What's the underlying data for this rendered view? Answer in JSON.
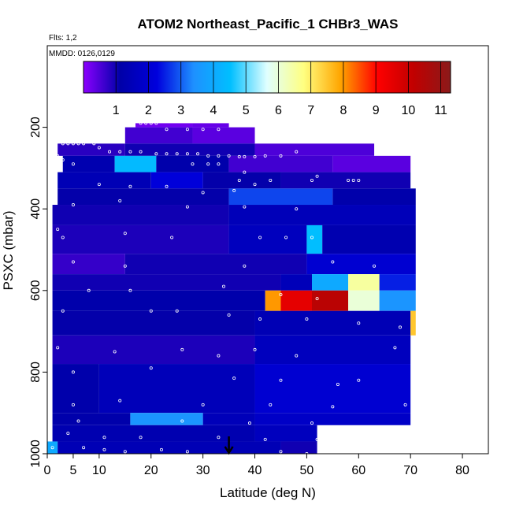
{
  "chart_data": {
    "type": "heatmap",
    "title": "ATOM2 Northeast_Pacific_1 CHBr3_WAS",
    "flights_label": "Flts: 1,2",
    "dates_label": "MMDD: 0126,0129",
    "xlabel": "Latitude (deg N)",
    "ylabel": "PSXC (mbar)",
    "xlim": [
      0,
      85
    ],
    "ylim": [
      1000,
      0
    ],
    "x_ticks": [
      0,
      5,
      10,
      20,
      30,
      40,
      50,
      60,
      70,
      80
    ],
    "y_ticks": [
      200,
      400,
      600,
      800,
      1000
    ],
    "colorbar": {
      "ticks": [
        1,
        2,
        3,
        4,
        5,
        6,
        7,
        8,
        9,
        10,
        11
      ],
      "range": [
        0,
        11.3
      ],
      "stops": [
        "#8b00ff",
        "#0000a8",
        "#0000dd",
        "#1e90ff",
        "#00bfff",
        "#e0ffff",
        "#ffff80",
        "#ffa500",
        "#ff0000",
        "#c00000",
        "#8b1a1a"
      ]
    },
    "marker": {
      "latitude": 35,
      "label": "arrow"
    },
    "cells": [
      {
        "lat0": 17,
        "lat1": 28,
        "p0": 200,
        "p1": 190,
        "value": 0.2
      },
      {
        "lat0": 28,
        "lat1": 35,
        "p0": 200,
        "p1": 190,
        "value": 0.3
      },
      {
        "lat0": 15,
        "lat1": 28,
        "p0": 240,
        "p1": 200,
        "value": 0.6
      },
      {
        "lat0": 28,
        "lat1": 40,
        "p0": 240,
        "p1": 200,
        "value": 0.4
      },
      {
        "lat0": 2,
        "lat1": 15,
        "p0": 270,
        "p1": 240,
        "value": 0.8
      },
      {
        "lat0": 15,
        "lat1": 40,
        "p0": 270,
        "p1": 240,
        "value": 1.0
      },
      {
        "lat0": 40,
        "lat1": 63,
        "p0": 270,
        "p1": 240,
        "value": 0.5
      },
      {
        "lat0": 3,
        "lat1": 13,
        "p0": 310,
        "p1": 270,
        "value": 1.3
      },
      {
        "lat0": 13,
        "lat1": 21,
        "p0": 310,
        "p1": 270,
        "value": 4.4
      },
      {
        "lat0": 21,
        "lat1": 35,
        "p0": 310,
        "p1": 270,
        "value": 1.2
      },
      {
        "lat0": 35,
        "lat1": 55,
        "p0": 310,
        "p1": 270,
        "value": 0.6
      },
      {
        "lat0": 55,
        "lat1": 70,
        "p0": 310,
        "p1": 270,
        "value": 0.4
      },
      {
        "lat0": 2,
        "lat1": 20,
        "p0": 350,
        "p1": 310,
        "value": 1.4
      },
      {
        "lat0": 20,
        "lat1": 30,
        "p0": 350,
        "p1": 310,
        "value": 2.2
      },
      {
        "lat0": 30,
        "lat1": 45,
        "p0": 350,
        "p1": 310,
        "value": 1.1
      },
      {
        "lat0": 45,
        "lat1": 70,
        "p0": 350,
        "p1": 310,
        "value": 1.0
      },
      {
        "lat0": 2,
        "lat1": 35,
        "p0": 390,
        "p1": 350,
        "value": 1.1
      },
      {
        "lat0": 35,
        "lat1": 55,
        "p0": 390,
        "p1": 350,
        "value": 2.8
      },
      {
        "lat0": 55,
        "lat1": 71,
        "p0": 390,
        "p1": 350,
        "value": 1.2
      },
      {
        "lat0": 1,
        "lat1": 35,
        "p0": 440,
        "p1": 390,
        "value": 1.0
      },
      {
        "lat0": 35,
        "lat1": 71,
        "p0": 440,
        "p1": 390,
        "value": 1.5
      },
      {
        "lat0": 1,
        "lat1": 35,
        "p0": 510,
        "p1": 440,
        "value": 0.9
      },
      {
        "lat0": 35,
        "lat1": 50,
        "p0": 510,
        "p1": 440,
        "value": 1.6
      },
      {
        "lat0": 50,
        "lat1": 53,
        "p0": 510,
        "p1": 440,
        "value": 4.5
      },
      {
        "lat0": 53,
        "lat1": 71,
        "p0": 510,
        "p1": 440,
        "value": 1.3
      },
      {
        "lat0": 1,
        "lat1": 15,
        "p0": 560,
        "p1": 510,
        "value": 0.7
      },
      {
        "lat0": 15,
        "lat1": 50,
        "p0": 560,
        "p1": 510,
        "value": 1.0
      },
      {
        "lat0": 50,
        "lat1": 71,
        "p0": 560,
        "p1": 510,
        "value": 2.0
      },
      {
        "lat0": 1,
        "lat1": 45,
        "p0": 600,
        "p1": 560,
        "value": 1.0
      },
      {
        "lat0": 45,
        "lat1": 51,
        "p0": 600,
        "p1": 560,
        "value": 1.5
      },
      {
        "lat0": 51,
        "lat1": 58,
        "p0": 600,
        "p1": 560,
        "value": 4.0
      },
      {
        "lat0": 58,
        "lat1": 64,
        "p0": 600,
        "p1": 560,
        "value": 6.5
      },
      {
        "lat0": 64,
        "lat1": 71,
        "p0": 600,
        "p1": 560,
        "value": 2.5
      },
      {
        "lat0": 1,
        "lat1": 42,
        "p0": 650,
        "p1": 600,
        "value": 1.2
      },
      {
        "lat0": 42,
        "lat1": 45,
        "p0": 650,
        "p1": 600,
        "value": 8.0
      },
      {
        "lat0": 45,
        "lat1": 51,
        "p0": 650,
        "p1": 600,
        "value": 9.5
      },
      {
        "lat0": 51,
        "lat1": 58,
        "p0": 650,
        "p1": 600,
        "value": 10.3
      },
      {
        "lat0": 58,
        "lat1": 64,
        "p0": 650,
        "p1": 600,
        "value": 6.0
      },
      {
        "lat0": 64,
        "lat1": 71,
        "p0": 650,
        "p1": 600,
        "value": 3.5
      },
      {
        "lat0": 1,
        "lat1": 40,
        "p0": 710,
        "p1": 650,
        "value": 1.1
      },
      {
        "lat0": 40,
        "lat1": 70,
        "p0": 710,
        "p1": 650,
        "value": 1.4
      },
      {
        "lat0": 70,
        "lat1": 71,
        "p0": 710,
        "p1": 650,
        "value": 7.5
      },
      {
        "lat0": 1,
        "lat1": 40,
        "p0": 780,
        "p1": 710,
        "value": 0.9
      },
      {
        "lat0": 40,
        "lat1": 70,
        "p0": 780,
        "p1": 710,
        "value": 1.6
      },
      {
        "lat0": 1,
        "lat1": 10,
        "p0": 900,
        "p1": 780,
        "value": 1.2
      },
      {
        "lat0": 10,
        "lat1": 40,
        "p0": 900,
        "p1": 780,
        "value": 1.5
      },
      {
        "lat0": 40,
        "lat1": 70,
        "p0": 900,
        "p1": 780,
        "value": 2.0
      },
      {
        "lat0": 1,
        "lat1": 16,
        "p0": 930,
        "p1": 900,
        "value": 1.2
      },
      {
        "lat0": 16,
        "lat1": 30,
        "p0": 930,
        "p1": 900,
        "value": 3.5
      },
      {
        "lat0": 30,
        "lat1": 40,
        "p0": 930,
        "p1": 900,
        "value": 1.5
      },
      {
        "lat0": 40,
        "lat1": 70,
        "p0": 930,
        "p1": 900,
        "value": 1.8
      },
      {
        "lat0": 1,
        "lat1": 40,
        "p0": 970,
        "p1": 930,
        "value": 1.3
      },
      {
        "lat0": 40,
        "lat1": 52,
        "p0": 970,
        "p1": 930,
        "value": 1.6
      },
      {
        "lat0": 0,
        "lat1": 2,
        "p0": 1000,
        "p1": 970,
        "value": 4.0
      },
      {
        "lat0": 2,
        "lat1": 45,
        "p0": 1000,
        "p1": 970,
        "value": 1.4
      },
      {
        "lat0": 45,
        "lat1": 52,
        "p0": 1000,
        "p1": 970,
        "value": 1.0
      }
    ],
    "points": [
      [
        18,
        190
      ],
      [
        19,
        190
      ],
      [
        20,
        190
      ],
      [
        21,
        190
      ],
      [
        23,
        205
      ],
      [
        27,
        205
      ],
      [
        30,
        205
      ],
      [
        33,
        205
      ],
      [
        3,
        240
      ],
      [
        4,
        240
      ],
      [
        5,
        240
      ],
      [
        6,
        240
      ],
      [
        7,
        240
      ],
      [
        9,
        240
      ],
      [
        10,
        250
      ],
      [
        12,
        260
      ],
      [
        14,
        260
      ],
      [
        16,
        260
      ],
      [
        18,
        260
      ],
      [
        21,
        265
      ],
      [
        23,
        265
      ],
      [
        25,
        265
      ],
      [
        27,
        265
      ],
      [
        29,
        265
      ],
      [
        31,
        270
      ],
      [
        33,
        270
      ],
      [
        35,
        270
      ],
      [
        37,
        272
      ],
      [
        38,
        272
      ],
      [
        40,
        272
      ],
      [
        42,
        270
      ],
      [
        45,
        270
      ],
      [
        48,
        260
      ],
      [
        2,
        270
      ],
      [
        3,
        280
      ],
      [
        5,
        290
      ],
      [
        28,
        290
      ],
      [
        31,
        290
      ],
      [
        33,
        290
      ],
      [
        38,
        310
      ],
      [
        10,
        340
      ],
      [
        16,
        345
      ],
      [
        23,
        345
      ],
      [
        37,
        330
      ],
      [
        40,
        340
      ],
      [
        43,
        330
      ],
      [
        51,
        330
      ],
      [
        52,
        320
      ],
      [
        58,
        330
      ],
      [
        59,
        330
      ],
      [
        60,
        330
      ],
      [
        30,
        360
      ],
      [
        36,
        355
      ],
      [
        5,
        390
      ],
      [
        14,
        380
      ],
      [
        27,
        395
      ],
      [
        38,
        395
      ],
      [
        48,
        400
      ],
      [
        2,
        450
      ],
      [
        3,
        470
      ],
      [
        15,
        460
      ],
      [
        24,
        470
      ],
      [
        41,
        470
      ],
      [
        46,
        470
      ],
      [
        51,
        470
      ],
      [
        5,
        530
      ],
      [
        15,
        540
      ],
      [
        38,
        540
      ],
      [
        55,
        530
      ],
      [
        63,
        540
      ],
      [
        8,
        600
      ],
      [
        16,
        600
      ],
      [
        34,
        590
      ],
      [
        45,
        610
      ],
      [
        52,
        620
      ],
      [
        3,
        650
      ],
      [
        20,
        650
      ],
      [
        25,
        650
      ],
      [
        35,
        660
      ],
      [
        41,
        670
      ],
      [
        50,
        670
      ],
      [
        60,
        680
      ],
      [
        68,
        690
      ],
      [
        2,
        740
      ],
      [
        13,
        750
      ],
      [
        26,
        745
      ],
      [
        33,
        760
      ],
      [
        40,
        745
      ],
      [
        48,
        760
      ],
      [
        67,
        740
      ],
      [
        5,
        800
      ],
      [
        20,
        790
      ],
      [
        36,
        815
      ],
      [
        45,
        820
      ],
      [
        56,
        830
      ],
      [
        60,
        820
      ],
      [
        5,
        880
      ],
      [
        14,
        870
      ],
      [
        30,
        880
      ],
      [
        43,
        880
      ],
      [
        55,
        885
      ],
      [
        69,
        880
      ],
      [
        6,
        920
      ],
      [
        26,
        920
      ],
      [
        39,
        925
      ],
      [
        51,
        925
      ],
      [
        4,
        950
      ],
      [
        11,
        960
      ],
      [
        18,
        960
      ],
      [
        33,
        960
      ],
      [
        42,
        965
      ],
      [
        52,
        965
      ],
      [
        1,
        985
      ],
      [
        7,
        985
      ],
      [
        11,
        990
      ],
      [
        15,
        995
      ],
      [
        22,
        990
      ],
      [
        27,
        995
      ],
      [
        35,
        995
      ],
      [
        45,
        995
      ],
      [
        50,
        1000
      ]
    ]
  }
}
